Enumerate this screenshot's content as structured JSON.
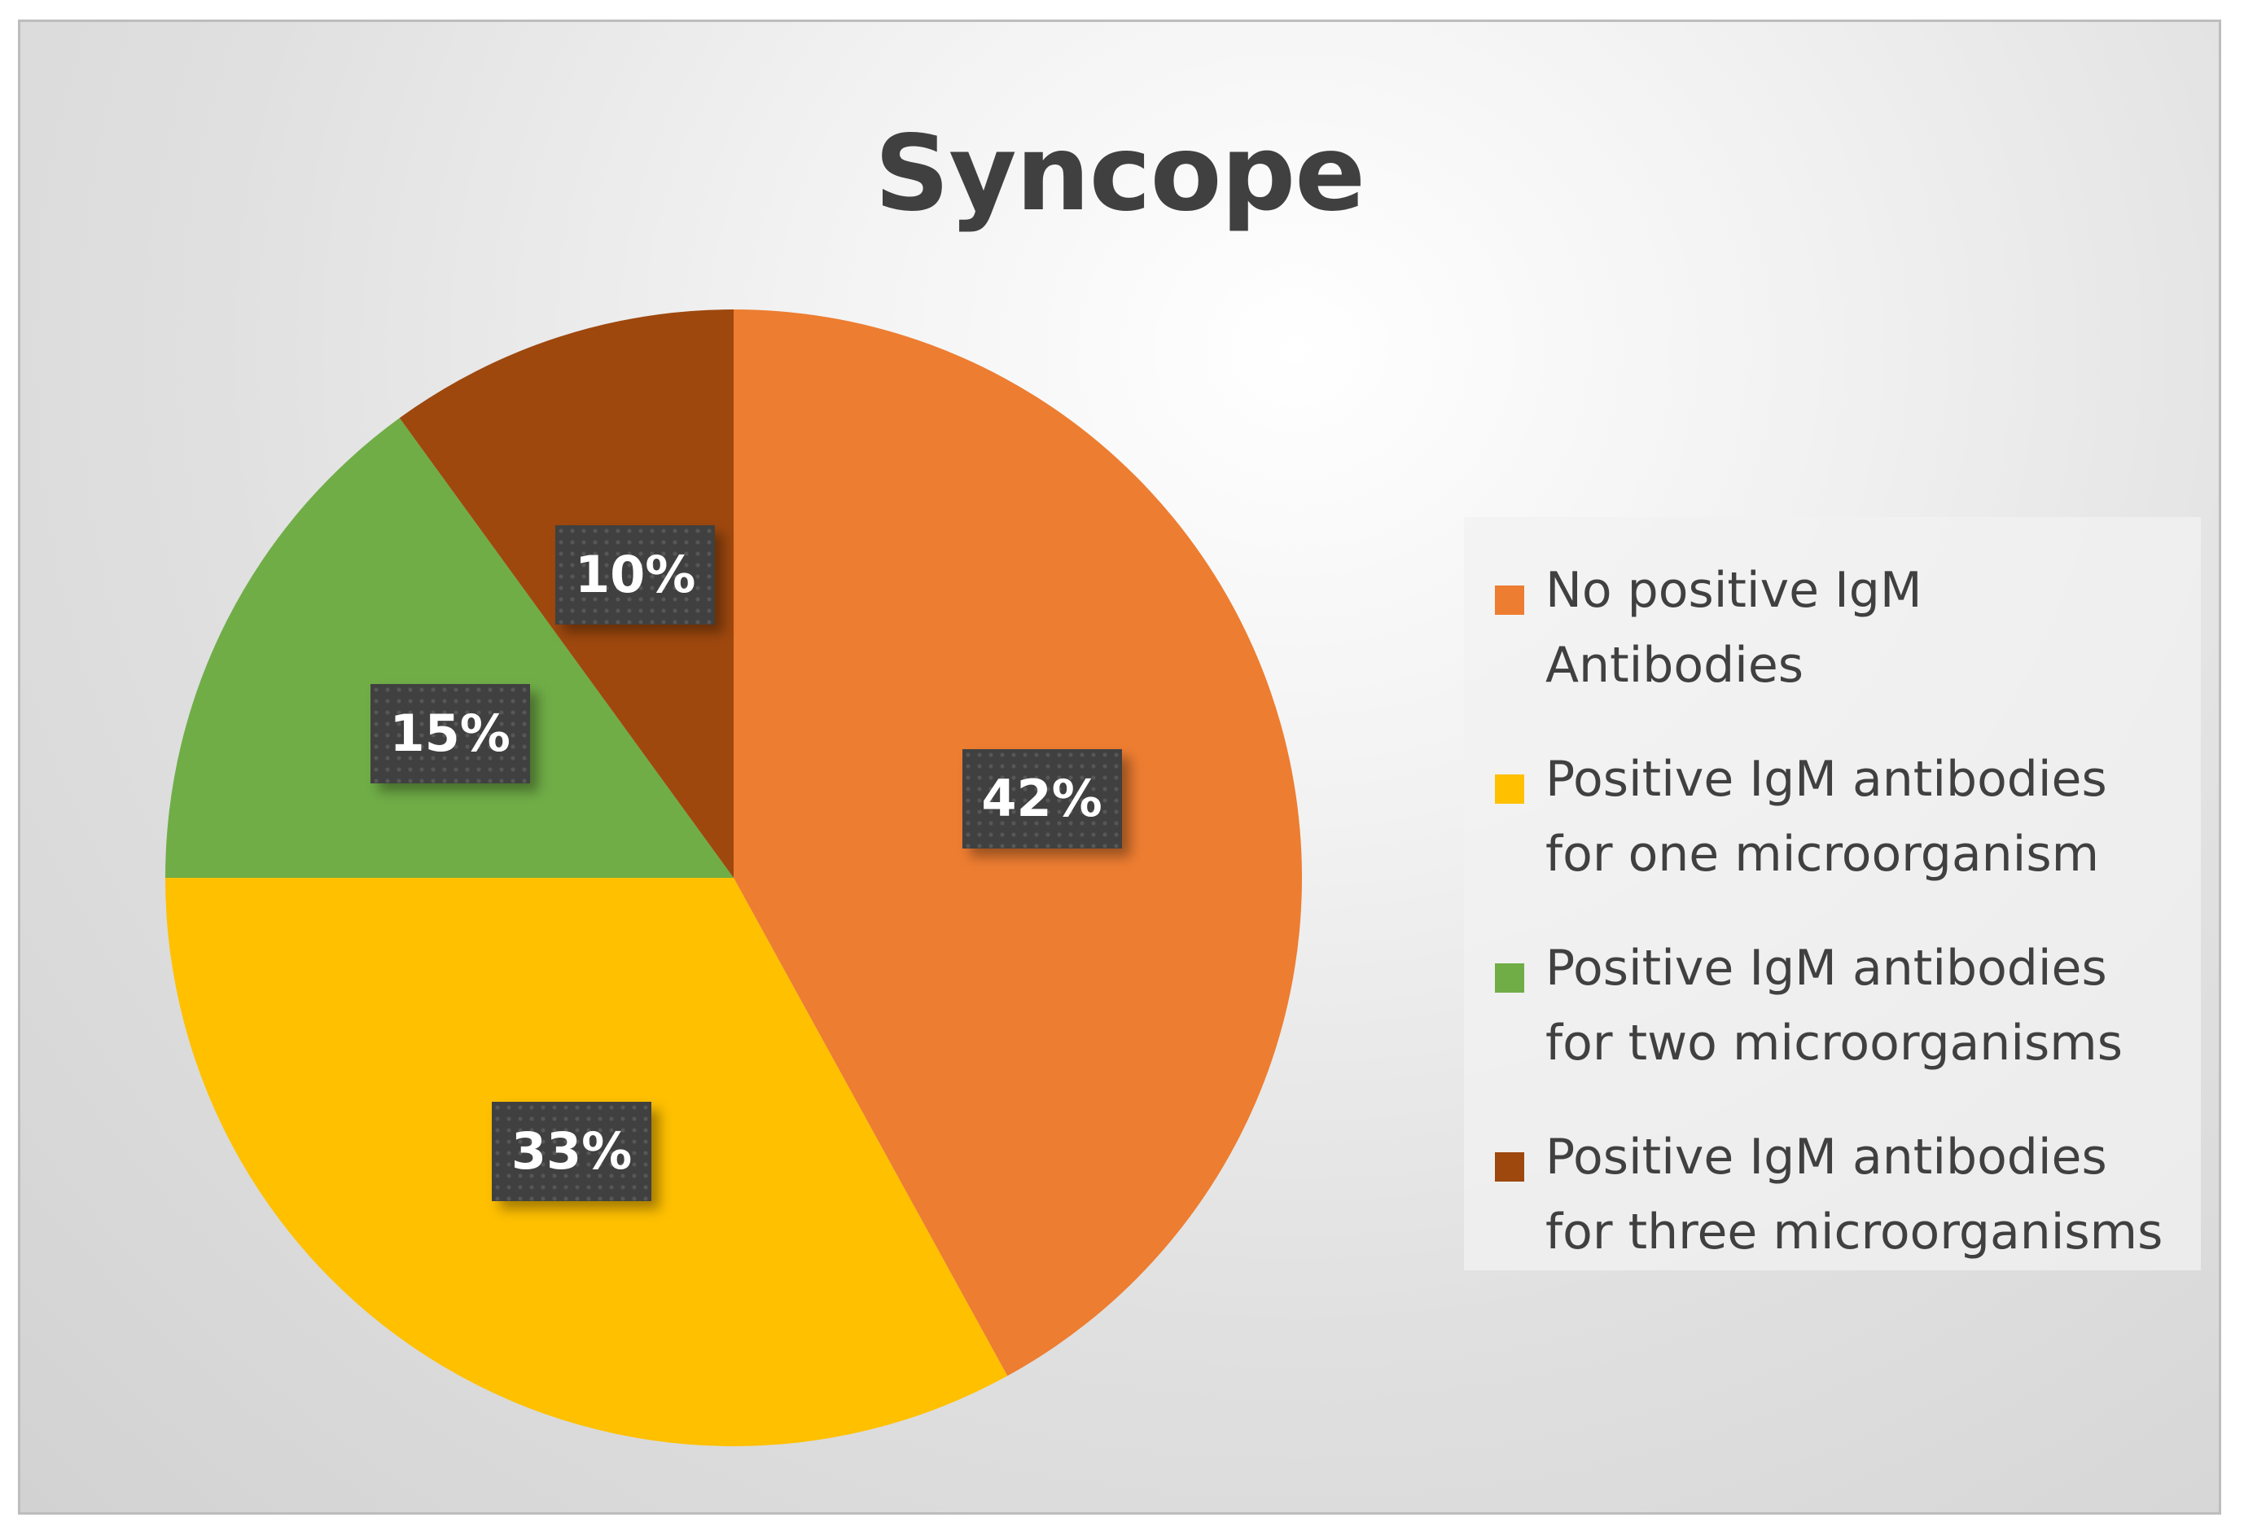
{
  "chart_data": {
    "type": "pie",
    "title": "Syncope",
    "categories": [
      "No positive IgM Antibodies",
      "Positive IgM antibodies for one microorganism",
      "Positive IgM antibodies for two microorganisms",
      "Positive IgM antibodies for three microorganisms"
    ],
    "values": [
      42,
      33,
      15,
      10
    ],
    "labels": [
      "42%",
      "33%",
      "15%",
      "10%"
    ],
    "colors": [
      "#ED7D31",
      "#FFC000",
      "#70AD47",
      "#9E480E"
    ],
    "start_angle_deg": 0,
    "direction": "clockwise",
    "legend_position": "right"
  },
  "legend": {
    "items": [
      {
        "lines": [
          "No positive IgM",
          "Antibodies"
        ]
      },
      {
        "lines": [
          "Positive IgM antibodies",
          "for one microorganism"
        ]
      },
      {
        "lines": [
          "Positive IgM antibodies",
          "for two microorganisms"
        ]
      },
      {
        "lines": [
          "Positive IgM antibodies",
          "for three microorganisms"
        ]
      }
    ]
  }
}
